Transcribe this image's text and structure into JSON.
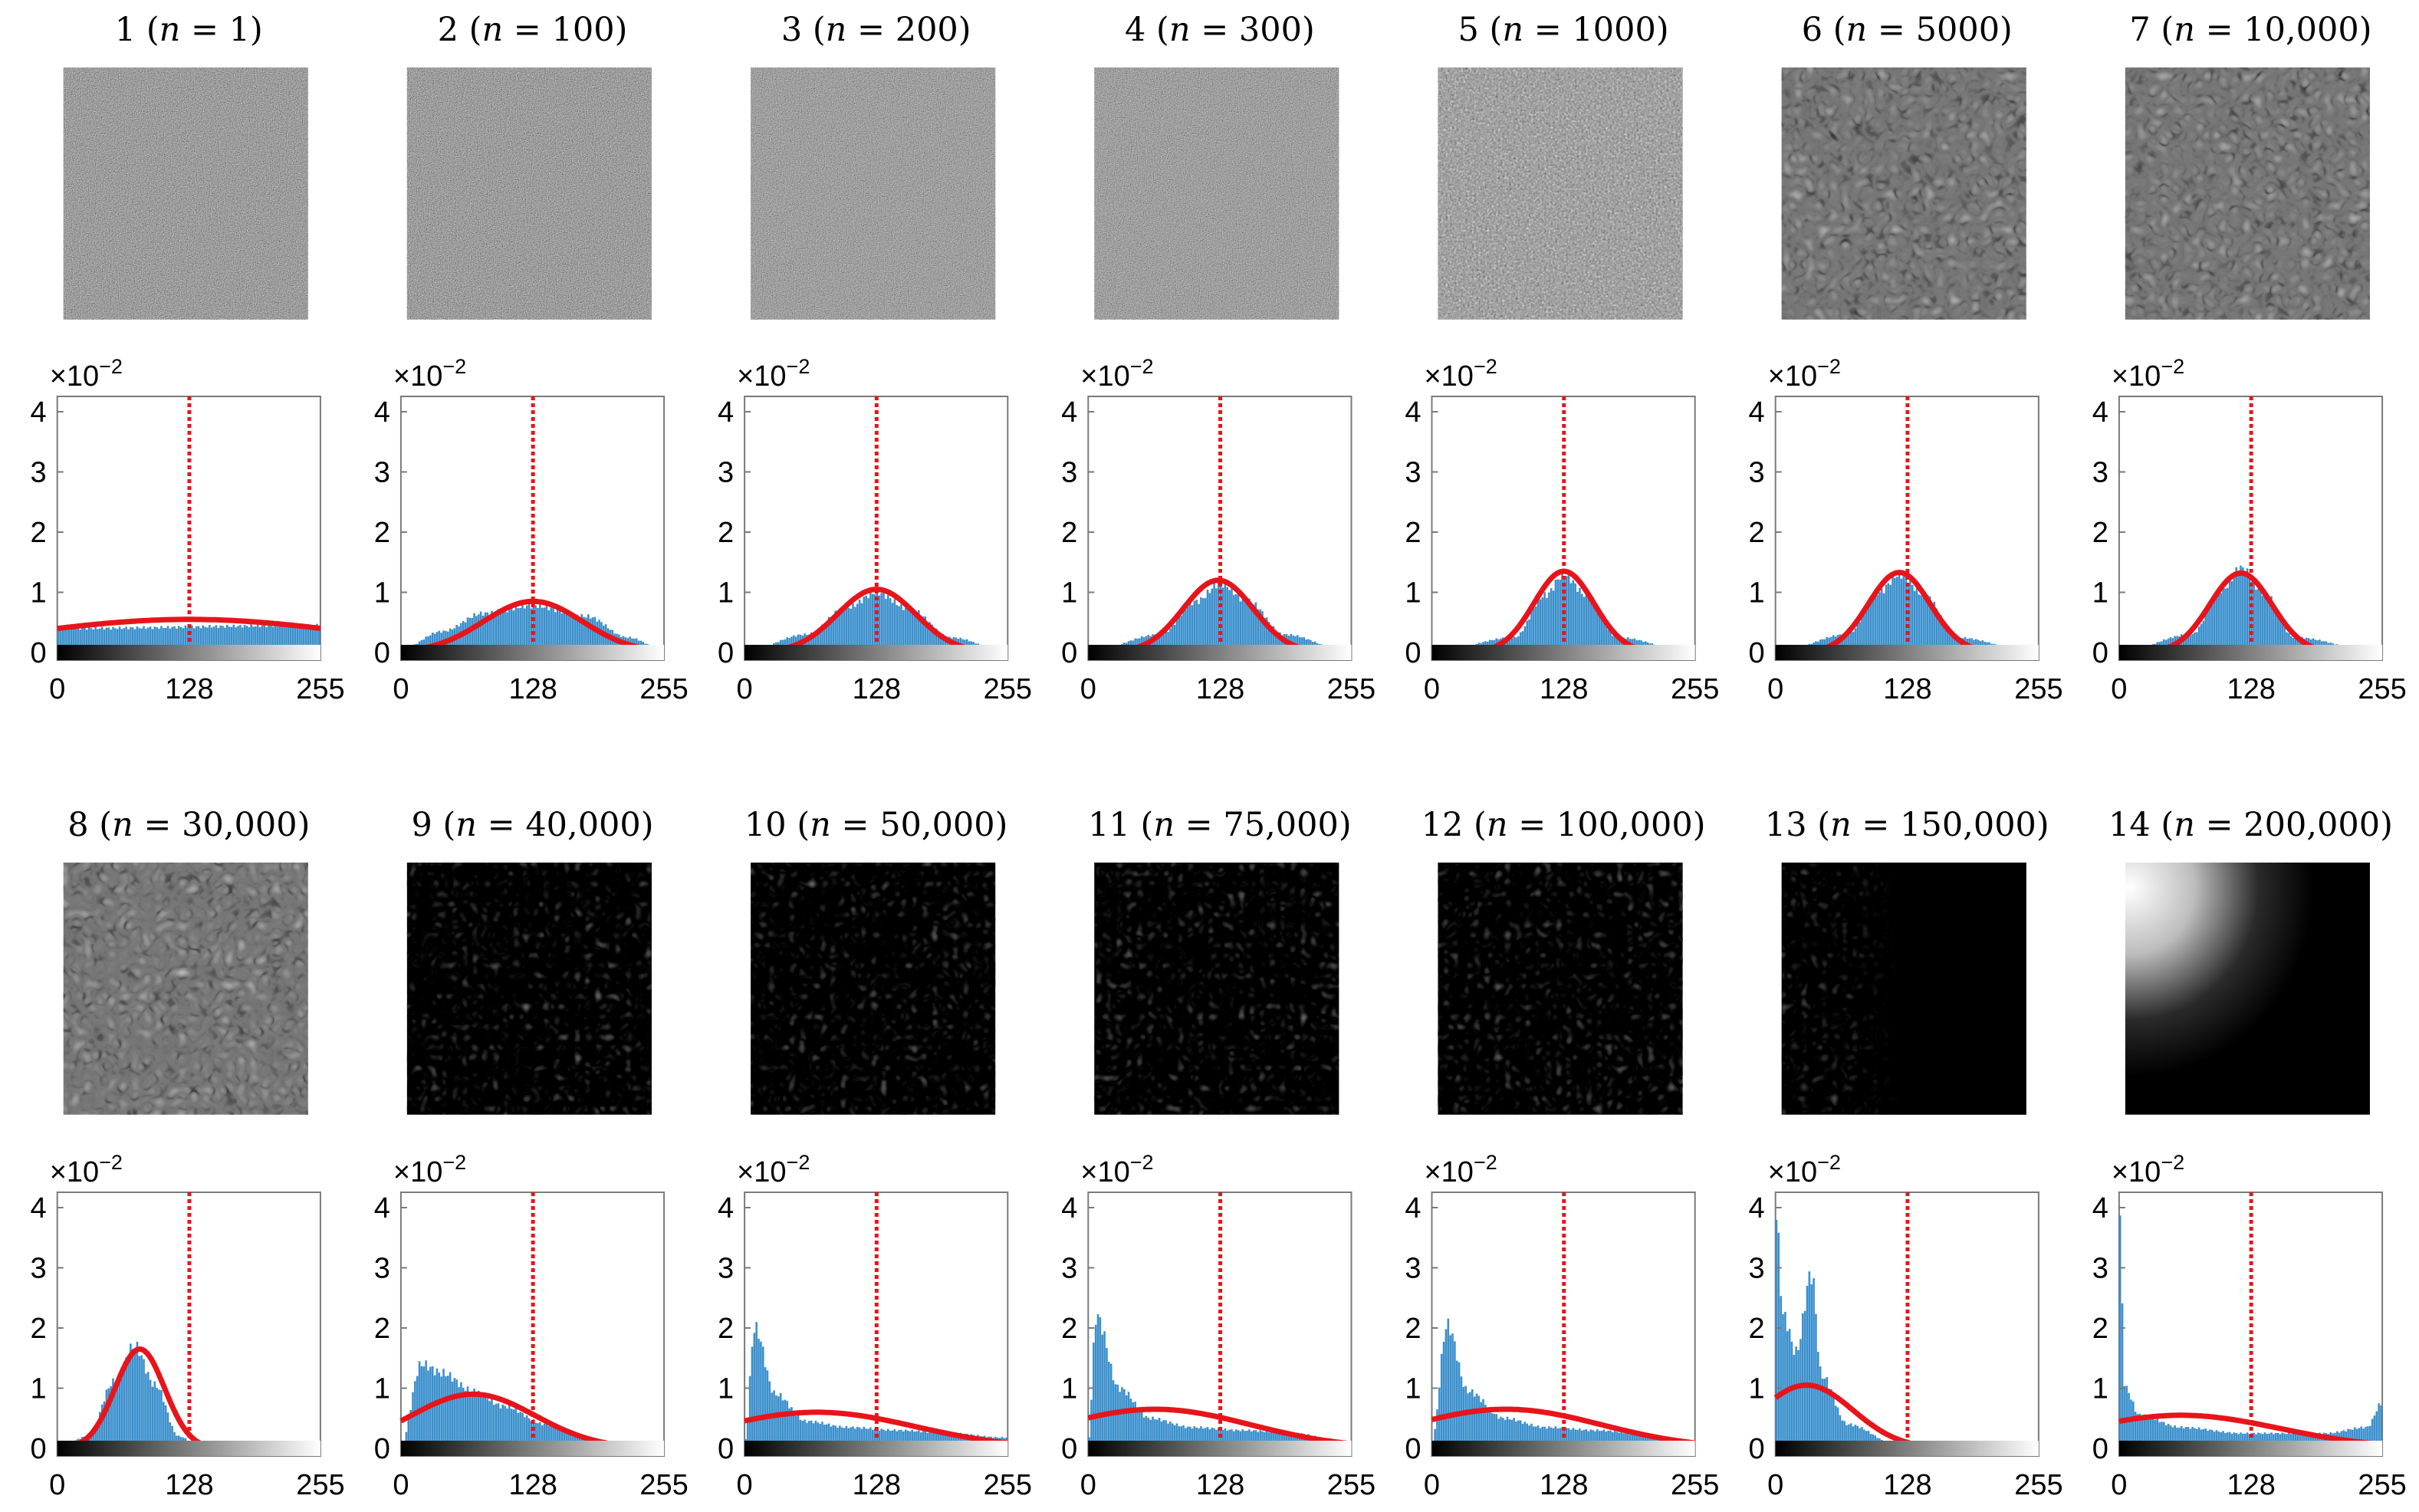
{
  "figure": {
    "axis_multiplier": {
      "base": "×10",
      "exponent": "−2"
    },
    "x_ticks": [
      "0",
      "128",
      "255"
    ],
    "y_ticks": [
      "0",
      "1",
      "2",
      "3",
      "4"
    ],
    "colors": {
      "bars": "#3a8fcc",
      "fit": "#e8141b",
      "mean": "#e8141b",
      "frame": "#7a7a7a"
    }
  },
  "chart_data": [
    {
      "type": "bar",
      "panel": "1",
      "n": "1",
      "hist": [
        [
          0,
          0.4
        ],
        [
          255,
          0.45
        ]
      ],
      "fit": {
        "mu": 128,
        "sigma": 160,
        "peak": 0.55
      },
      "mean": 128,
      "title": {
        "index": "1",
        "n": "1"
      },
      "xlim": [
        0,
        255
      ],
      "ylim": [
        0,
        4
      ],
      "ylabel_scale": "×10^−2"
    },
    {
      "type": "bar",
      "panel": "2",
      "n": "100",
      "hist": [
        [
          0,
          0.05
        ],
        [
          40,
          0.35
        ],
        [
          80,
          0.65
        ],
        [
          128,
          0.78
        ],
        [
          180,
          0.6
        ],
        [
          220,
          0.25
        ],
        [
          255,
          0.05
        ]
      ],
      "fit": {
        "mu": 128,
        "sigma": 48,
        "peak": 0.85
      },
      "mean": 128,
      "title": {
        "index": "2",
        "n": "100"
      },
      "xlim": [
        0,
        255
      ],
      "ylim": [
        0,
        4
      ]
    },
    {
      "type": "bar",
      "panel": "3",
      "n": "200",
      "hist": [
        [
          0,
          0.02
        ],
        [
          60,
          0.3
        ],
        [
          100,
          0.75
        ],
        [
          128,
          1.0
        ],
        [
          160,
          0.72
        ],
        [
          200,
          0.25
        ],
        [
          255,
          0.02
        ]
      ],
      "fit": {
        "mu": 128,
        "sigma": 38,
        "peak": 1.05
      },
      "mean": 128,
      "title": {
        "index": "3",
        "n": "200"
      },
      "xlim": [
        0,
        255
      ],
      "ylim": [
        0,
        4
      ]
    },
    {
      "type": "bar",
      "panel": "4",
      "n": "300",
      "hist": [
        [
          0,
          0.01
        ],
        [
          70,
          0.3
        ],
        [
          105,
          0.85
        ],
        [
          128,
          1.15
        ],
        [
          155,
          0.85
        ],
        [
          190,
          0.3
        ],
        [
          255,
          0.01
        ]
      ],
      "fit": {
        "mu": 126,
        "sigma": 34,
        "peak": 1.2
      },
      "mean": 128,
      "title": {
        "index": "4",
        "n": "300"
      },
      "xlim": [
        0,
        255
      ],
      "ylim": [
        0,
        4
      ]
    },
    {
      "type": "bar",
      "panel": "5",
      "n": "1000",
      "hist": [
        [
          0,
          0.0
        ],
        [
          80,
          0.25
        ],
        [
          110,
          0.95
        ],
        [
          128,
          1.3
        ],
        [
          150,
          0.95
        ],
        [
          180,
          0.25
        ],
        [
          255,
          0.0
        ]
      ],
      "fit": {
        "mu": 128,
        "sigma": 29,
        "peak": 1.35
      },
      "mean": 128,
      "title": {
        "index": "5",
        "n": "1000"
      },
      "xlim": [
        0,
        255
      ],
      "ylim": [
        0,
        4
      ]
    },
    {
      "type": "bar",
      "panel": "6",
      "n": "5000",
      "hist": [
        [
          0,
          0.0
        ],
        [
          70,
          0.3
        ],
        [
          100,
          1.0
        ],
        [
          120,
          1.3
        ],
        [
          145,
          0.95
        ],
        [
          175,
          0.25
        ],
        [
          255,
          0.0
        ]
      ],
      "fit": {
        "mu": 120,
        "sigma": 30,
        "peak": 1.33
      },
      "mean": 128,
      "title": {
        "index": "6",
        "n": "5000"
      },
      "xlim": [
        0,
        255
      ],
      "ylim": [
        0,
        4
      ]
    },
    {
      "type": "bar",
      "panel": "7",
      "n": "10,000",
      "hist": [
        [
          0,
          0.0
        ],
        [
          70,
          0.3
        ],
        [
          100,
          1.05
        ],
        [
          118,
          1.4
        ],
        [
          140,
          1.0
        ],
        [
          170,
          0.25
        ],
        [
          255,
          0.0
        ]
      ],
      "fit": {
        "mu": 118,
        "sigma": 30,
        "peak": 1.32
      },
      "mean": 128,
      "title": {
        "index": "7",
        "n": "10,000"
      },
      "xlim": [
        0,
        255
      ],
      "ylim": [
        0,
        4
      ]
    },
    {
      "type": "bar",
      "panel": "8",
      "n": "30,000",
      "hist": [
        [
          0,
          0.0
        ],
        [
          30,
          0.2
        ],
        [
          55,
          1.1
        ],
        [
          75,
          1.7
        ],
        [
          95,
          1.05
        ],
        [
          118,
          0.2
        ],
        [
          140,
          0.0
        ],
        [
          255,
          0.0
        ]
      ],
      "fit": {
        "mu": 80,
        "sigma": 24,
        "peak": 1.65
      },
      "mean": 128,
      "title": {
        "index": "8",
        "n": "30,000"
      },
      "xlim": [
        0,
        255
      ],
      "ylim": [
        0,
        4
      ]
    },
    {
      "type": "bar",
      "panel": "9",
      "n": "40,000",
      "hist": [
        [
          0,
          0.05
        ],
        [
          20,
          1.4
        ],
        [
          40,
          1.25
        ],
        [
          70,
          0.95
        ],
        [
          100,
          0.7
        ],
        [
          140,
          0.4
        ],
        [
          180,
          0.15
        ],
        [
          220,
          0.02
        ],
        [
          255,
          0.0
        ]
      ],
      "fit": {
        "mu": 70,
        "sigma": 60,
        "peak": 0.9
      },
      "mean": 128,
      "title": {
        "index": "9",
        "n": "40,000"
      },
      "xlim": [
        0,
        255
      ],
      "ylim": [
        0,
        4
      ]
    },
    {
      "type": "bar",
      "panel": "10",
      "n": "50,000",
      "hist": [
        [
          0,
          0.1
        ],
        [
          10,
          2.0
        ],
        [
          30,
          0.9
        ],
        [
          60,
          0.45
        ],
        [
          100,
          0.35
        ],
        [
          150,
          0.3
        ],
        [
          200,
          0.25
        ],
        [
          250,
          0.18
        ]
      ],
      "fit": {
        "mu": 70,
        "sigma": 95,
        "peak": 0.6
      },
      "mean": 128,
      "title": {
        "index": "10",
        "n": "50,000"
      },
      "xlim": [
        0,
        255
      ],
      "ylim": [
        0,
        4
      ]
    },
    {
      "type": "bar",
      "panel": "11",
      "n": "75,000",
      "hist": [
        [
          0,
          0.1
        ],
        [
          8,
          2.2
        ],
        [
          30,
          1.0
        ],
        [
          60,
          0.5
        ],
        [
          100,
          0.35
        ],
        [
          150,
          0.3
        ],
        [
          200,
          0.25
        ],
        [
          250,
          0.1
        ]
      ],
      "fit": {
        "mu": 65,
        "sigma": 92,
        "peak": 0.65
      },
      "mean": 128,
      "title": {
        "index": "11",
        "n": "75,000"
      },
      "xlim": [
        0,
        255
      ],
      "ylim": [
        0,
        4
      ]
    },
    {
      "type": "bar",
      "panel": "12",
      "n": "100,000",
      "hist": [
        [
          0,
          0.1
        ],
        [
          15,
          2.05
        ],
        [
          35,
          0.95
        ],
        [
          70,
          0.5
        ],
        [
          110,
          0.35
        ],
        [
          160,
          0.3
        ],
        [
          220,
          0.2
        ],
        [
          255,
          0.1
        ]
      ],
      "fit": {
        "mu": 72,
        "sigma": 92,
        "peak": 0.65
      },
      "mean": 128,
      "title": {
        "index": "12",
        "n": "100,000"
      },
      "xlim": [
        0,
        255
      ],
      "ylim": [
        0,
        4
      ]
    },
    {
      "type": "bar",
      "panel": "13",
      "n": "150,000",
      "hist": [
        [
          0,
          4.0
        ],
        [
          8,
          2.2
        ],
        [
          20,
          1.6
        ],
        [
          35,
          2.9
        ],
        [
          45,
          1.2
        ],
        [
          70,
          0.4
        ],
        [
          120,
          0.05
        ],
        [
          160,
          0.0
        ],
        [
          255,
          0.0
        ]
      ],
      "fit": {
        "mu": 30,
        "sigma": 45,
        "peak": 1.05
      },
      "mean": 128,
      "title": {
        "index": "13",
        "n": "150,000"
      },
      "xlim": [
        0,
        255
      ],
      "ylim": [
        0,
        4
      ]
    },
    {
      "type": "bar",
      "panel": "14",
      "n": "200,000",
      "hist": [
        [
          0,
          4.0
        ],
        [
          6,
          1.0
        ],
        [
          20,
          0.55
        ],
        [
          60,
          0.35
        ],
        [
          120,
          0.25
        ],
        [
          200,
          0.25
        ],
        [
          240,
          0.35
        ],
        [
          255,
          0.75
        ]
      ],
      "fit": {
        "mu": 60,
        "sigma": 95,
        "peak": 0.55
      },
      "mean": 128,
      "title": {
        "index": "14",
        "n": "200,000"
      },
      "xlim": [
        0,
        255
      ],
      "ylim": [
        0,
        4
      ]
    }
  ]
}
